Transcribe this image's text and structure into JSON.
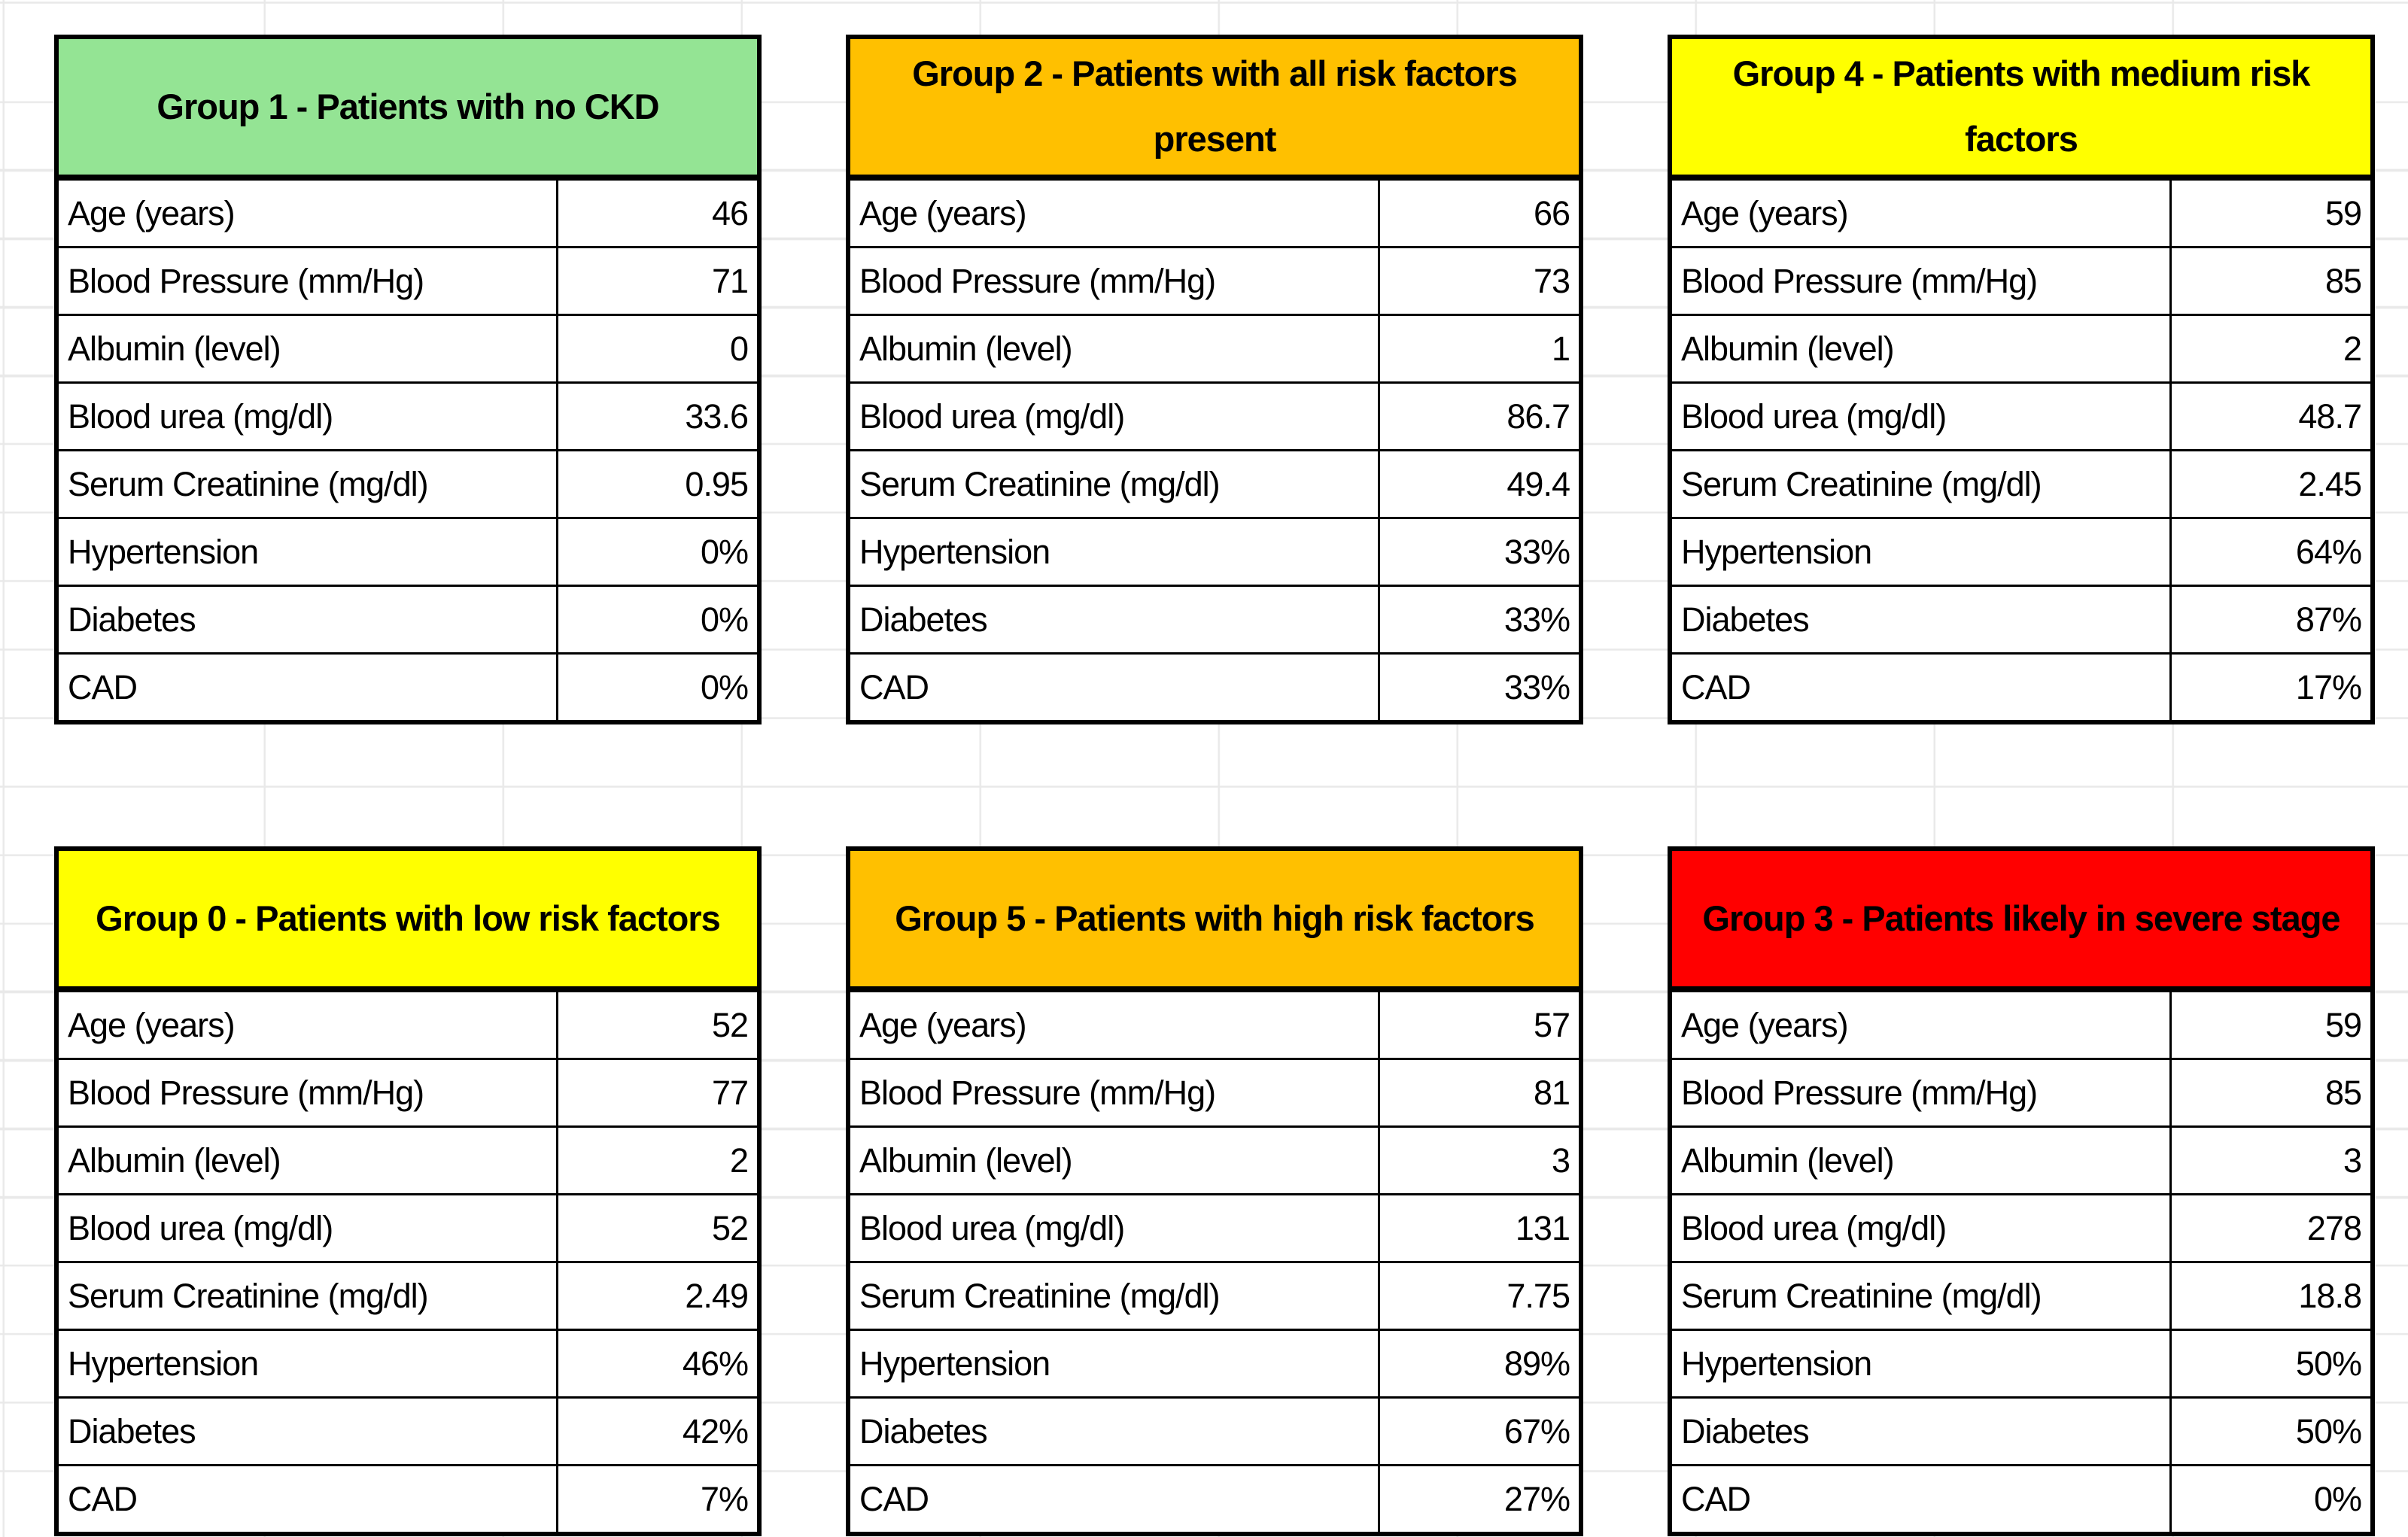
{
  "app": {
    "kind": "spreadsheet-cells-screenshot",
    "description": "Six bordered summary tables of CKD patient cluster groups on a spreadsheet grid"
  },
  "colors": {
    "header_green": "#94E494",
    "header_orange": "#FFC000",
    "header_yellow": "#FFFF00",
    "header_red": "#FF0000",
    "table_border": "#000000",
    "grid_line": "#e9e9e9",
    "text": "#000000",
    "cell_background": "#ffffff"
  },
  "tables": [
    {
      "id": "group-1",
      "title": "Group 1 - Patients with no CKD",
      "header_color": "#94E494",
      "rows": [
        {
          "label": "Age (years)",
          "value": "46"
        },
        {
          "label": "Blood Pressure (mm/Hg)",
          "value": "71"
        },
        {
          "label": "Albumin (level)",
          "value": "0"
        },
        {
          "label": "Blood urea (mg/dl)",
          "value": "33.6"
        },
        {
          "label": "Serum Creatinine (mg/dl)",
          "value": "0.95"
        },
        {
          "label": "Hypertension",
          "value": "0%"
        },
        {
          "label": "Diabetes",
          "value": "0%"
        },
        {
          "label": "CAD",
          "value": "0%"
        }
      ]
    },
    {
      "id": "group-2",
      "title": "Group 2 - Patients with all risk factors present",
      "header_color": "#FFC000",
      "rows": [
        {
          "label": "Age (years)",
          "value": "66"
        },
        {
          "label": "Blood Pressure (mm/Hg)",
          "value": "73"
        },
        {
          "label": "Albumin (level)",
          "value": "1"
        },
        {
          "label": "Blood urea (mg/dl)",
          "value": "86.7"
        },
        {
          "label": "Serum Creatinine (mg/dl)",
          "value": "49.4"
        },
        {
          "label": "Hypertension",
          "value": "33%"
        },
        {
          "label": "Diabetes",
          "value": "33%"
        },
        {
          "label": "CAD",
          "value": "33%"
        }
      ]
    },
    {
      "id": "group-4",
      "title": "Group 4 - Patients with medium risk factors",
      "header_color": "#FFFF00",
      "rows": [
        {
          "label": "Age (years)",
          "value": "59"
        },
        {
          "label": "Blood Pressure (mm/Hg)",
          "value": "85"
        },
        {
          "label": "Albumin (level)",
          "value": "2"
        },
        {
          "label": "Blood urea (mg/dl)",
          "value": "48.7"
        },
        {
          "label": "Serum Creatinine (mg/dl)",
          "value": "2.45"
        },
        {
          "label": "Hypertension",
          "value": "64%"
        },
        {
          "label": "Diabetes",
          "value": "87%"
        },
        {
          "label": "CAD",
          "value": "17%"
        }
      ]
    },
    {
      "id": "group-0",
      "title": "Group 0 - Patients with low risk factors",
      "header_color": "#FFFF00",
      "rows": [
        {
          "label": "Age (years)",
          "value": "52"
        },
        {
          "label": "Blood Pressure (mm/Hg)",
          "value": "77"
        },
        {
          "label": "Albumin (level)",
          "value": "2"
        },
        {
          "label": "Blood urea (mg/dl)",
          "value": "52"
        },
        {
          "label": "Serum Creatinine (mg/dl)",
          "value": "2.49"
        },
        {
          "label": "Hypertension",
          "value": "46%"
        },
        {
          "label": "Diabetes",
          "value": "42%"
        },
        {
          "label": "CAD",
          "value": "7%"
        }
      ]
    },
    {
      "id": "group-5",
      "title": "Group 5 - Patients with high risk factors",
      "header_color": "#FFC000",
      "rows": [
        {
          "label": "Age (years)",
          "value": "57"
        },
        {
          "label": "Blood Pressure (mm/Hg)",
          "value": "81"
        },
        {
          "label": "Albumin (level)",
          "value": "3"
        },
        {
          "label": "Blood urea (mg/dl)",
          "value": "131"
        },
        {
          "label": "Serum Creatinine (mg/dl)",
          "value": "7.75"
        },
        {
          "label": "Hypertension",
          "value": "89%"
        },
        {
          "label": "Diabetes",
          "value": "67%"
        },
        {
          "label": "CAD",
          "value": "27%"
        }
      ]
    },
    {
      "id": "group-3",
      "title": "Group 3 - Patients likely in severe stage",
      "header_color": "#FF0000",
      "rows": [
        {
          "label": "Age (years)",
          "value": "59"
        },
        {
          "label": "Blood Pressure (mm/Hg)",
          "value": "85"
        },
        {
          "label": "Albumin (level)",
          "value": "3"
        },
        {
          "label": "Blood urea (mg/dl)",
          "value": "278"
        },
        {
          "label": "Serum Creatinine (mg/dl)",
          "value": "18.8"
        },
        {
          "label": "Hypertension",
          "value": "50%"
        },
        {
          "label": "Diabetes",
          "value": "50%"
        },
        {
          "label": "CAD",
          "value": "0%"
        }
      ]
    }
  ]
}
